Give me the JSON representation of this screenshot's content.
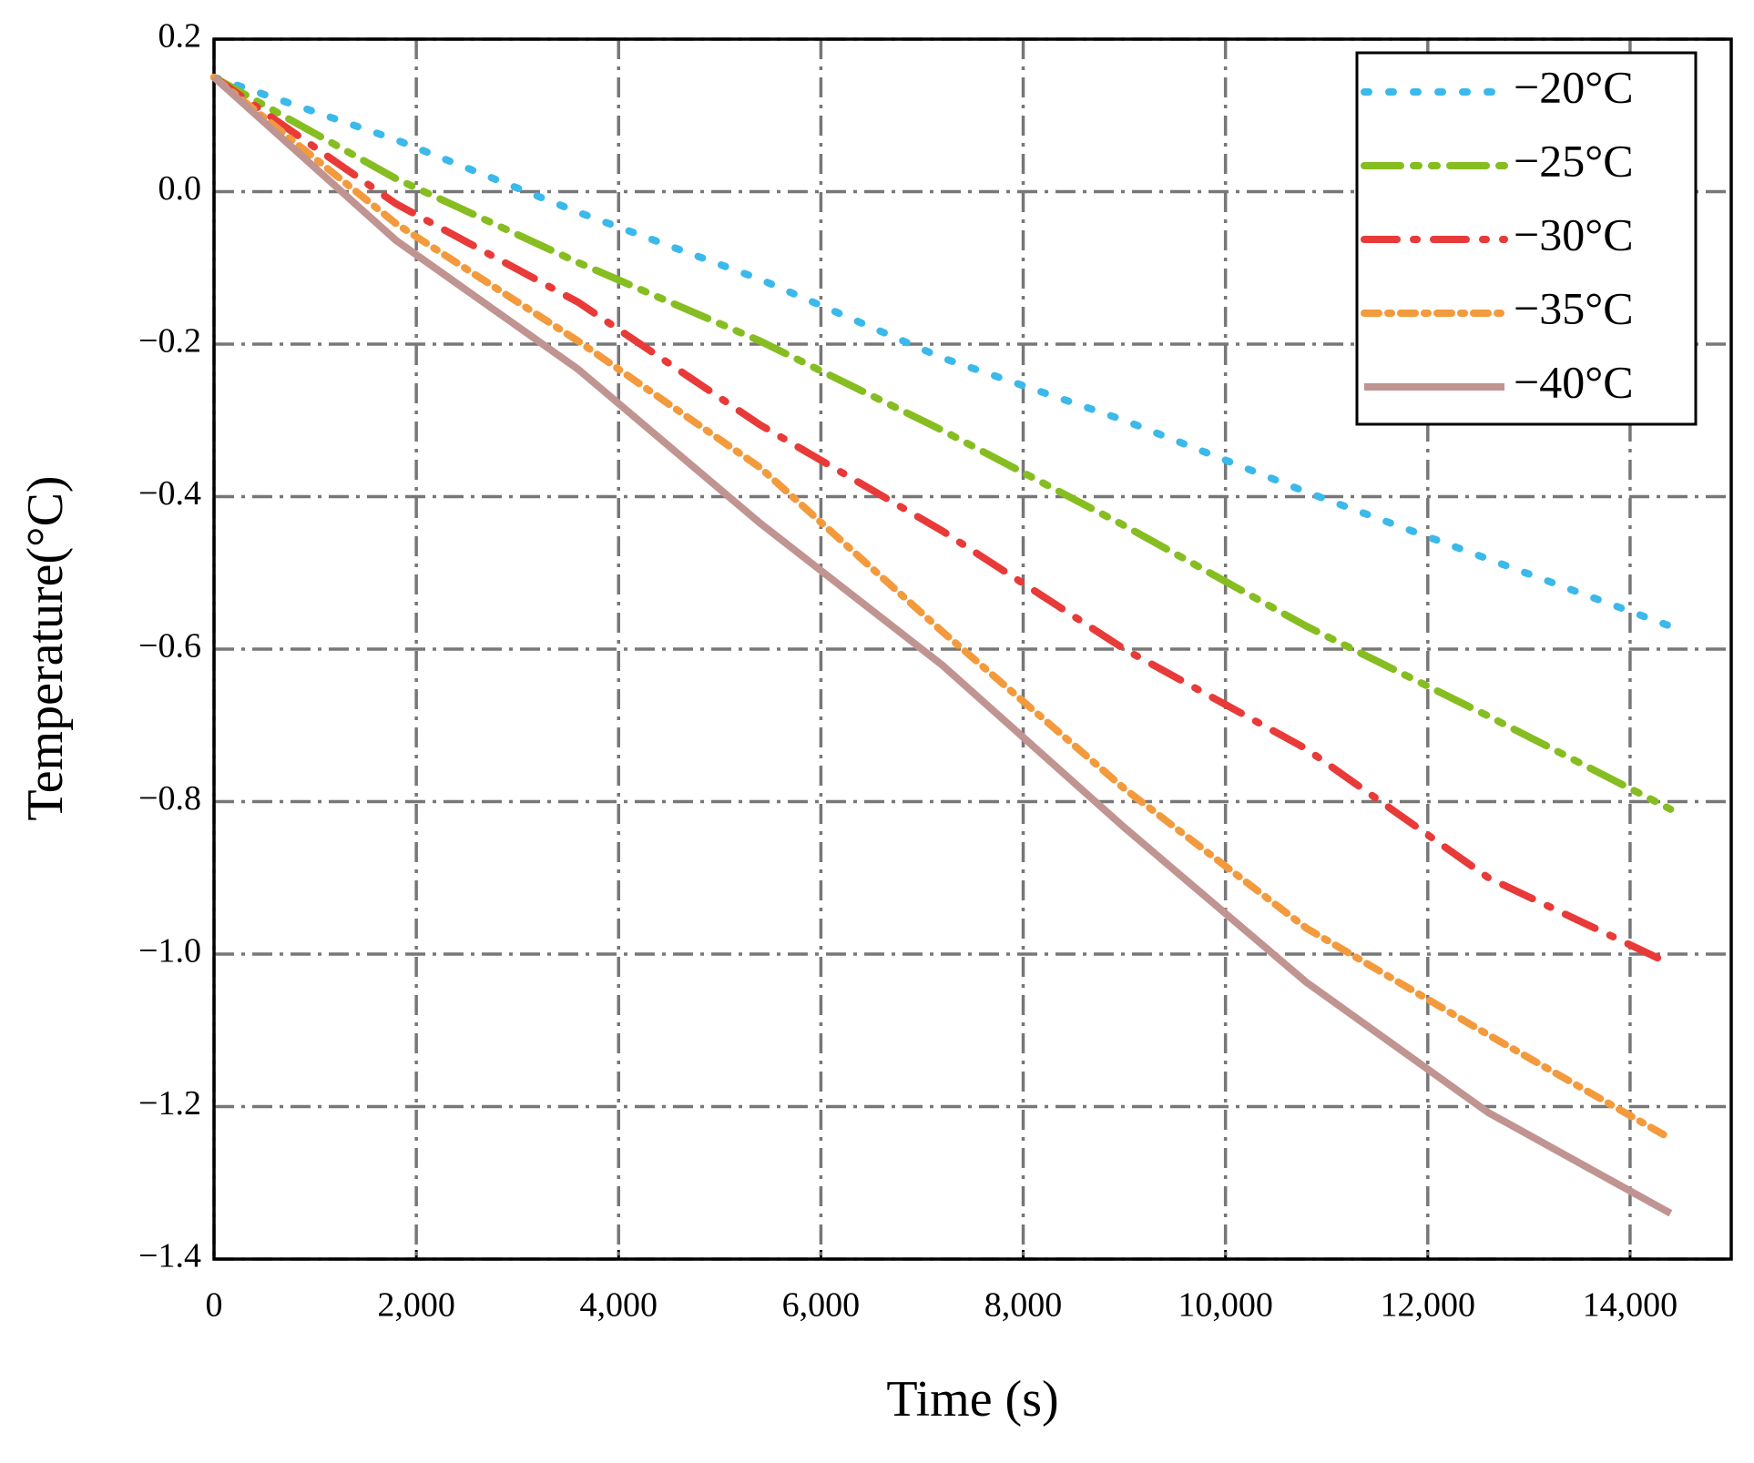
{
  "chart_data": {
    "type": "line",
    "xlabel": "Time (s)",
    "ylabel": "Temperature(°C)",
    "x": [
      0,
      1800,
      3600,
      5400,
      7200,
      9000,
      10800,
      12600,
      14400
    ],
    "series": [
      {
        "name": "−20°C",
        "color": "#3bb9ea",
        "dash": "dot",
        "values": [
          0.15,
          0.068,
          -0.027,
          -0.115,
          -0.218,
          -0.3,
          -0.394,
          -0.482,
          -0.57
        ]
      },
      {
        "name": "−25°C",
        "color": "#86bd20",
        "dash": "dash-dot-dot",
        "values": [
          0.15,
          0.017,
          -0.093,
          -0.196,
          -0.313,
          -0.438,
          -0.57,
          -0.688,
          -0.81
        ]
      },
      {
        "name": "−30°C",
        "color": "#e83a38",
        "dash": "dash-dot",
        "values": [
          0.15,
          -0.016,
          -0.145,
          -0.306,
          -0.445,
          -0.6,
          -0.731,
          -0.9,
          -1.013
        ]
      },
      {
        "name": "−35°C",
        "color": "#f39a3d",
        "dash": "short-dash-dot",
        "values": [
          0.15,
          -0.042,
          -0.196,
          -0.362,
          -0.577,
          -0.783,
          -0.966,
          -1.106,
          -1.242
        ]
      },
      {
        "name": "−40°C",
        "color": "#c09490",
        "dash": "solid",
        "values": [
          0.15,
          -0.064,
          -0.233,
          -0.435,
          -0.621,
          -0.834,
          -1.037,
          -1.208,
          -1.34
        ]
      }
    ],
    "xlim": [
      0,
      15000
    ],
    "xticks": [
      0,
      {
        "value": 2000,
        "label": "2,000"
      },
      {
        "value": 4000,
        "label": "4,000"
      },
      {
        "value": 6000,
        "label": "6,000"
      },
      {
        "value": 8000,
        "label": "8,000"
      },
      {
        "value": 10000,
        "label": "10,000"
      },
      {
        "value": 12000,
        "label": "12,000"
      },
      {
        "value": 14000,
        "label": "14,000"
      }
    ],
    "ylim": [
      -1.4,
      0.2
    ],
    "yticks": [
      {
        "value": -1.4,
        "label": "−1.4"
      },
      {
        "value": -1.2,
        "label": "−1.2"
      },
      {
        "value": -1.0,
        "label": "−1.0"
      },
      {
        "value": -0.8,
        "label": "−0.8"
      },
      {
        "value": -0.6,
        "label": "−0.6"
      },
      {
        "value": -0.4,
        "label": "−0.4"
      },
      {
        "value": -0.2,
        "label": "−0.2"
      },
      {
        "value": 0.0,
        "label": "0.0"
      },
      0.2
    ],
    "grid": true,
    "legend": "upper-right"
  }
}
